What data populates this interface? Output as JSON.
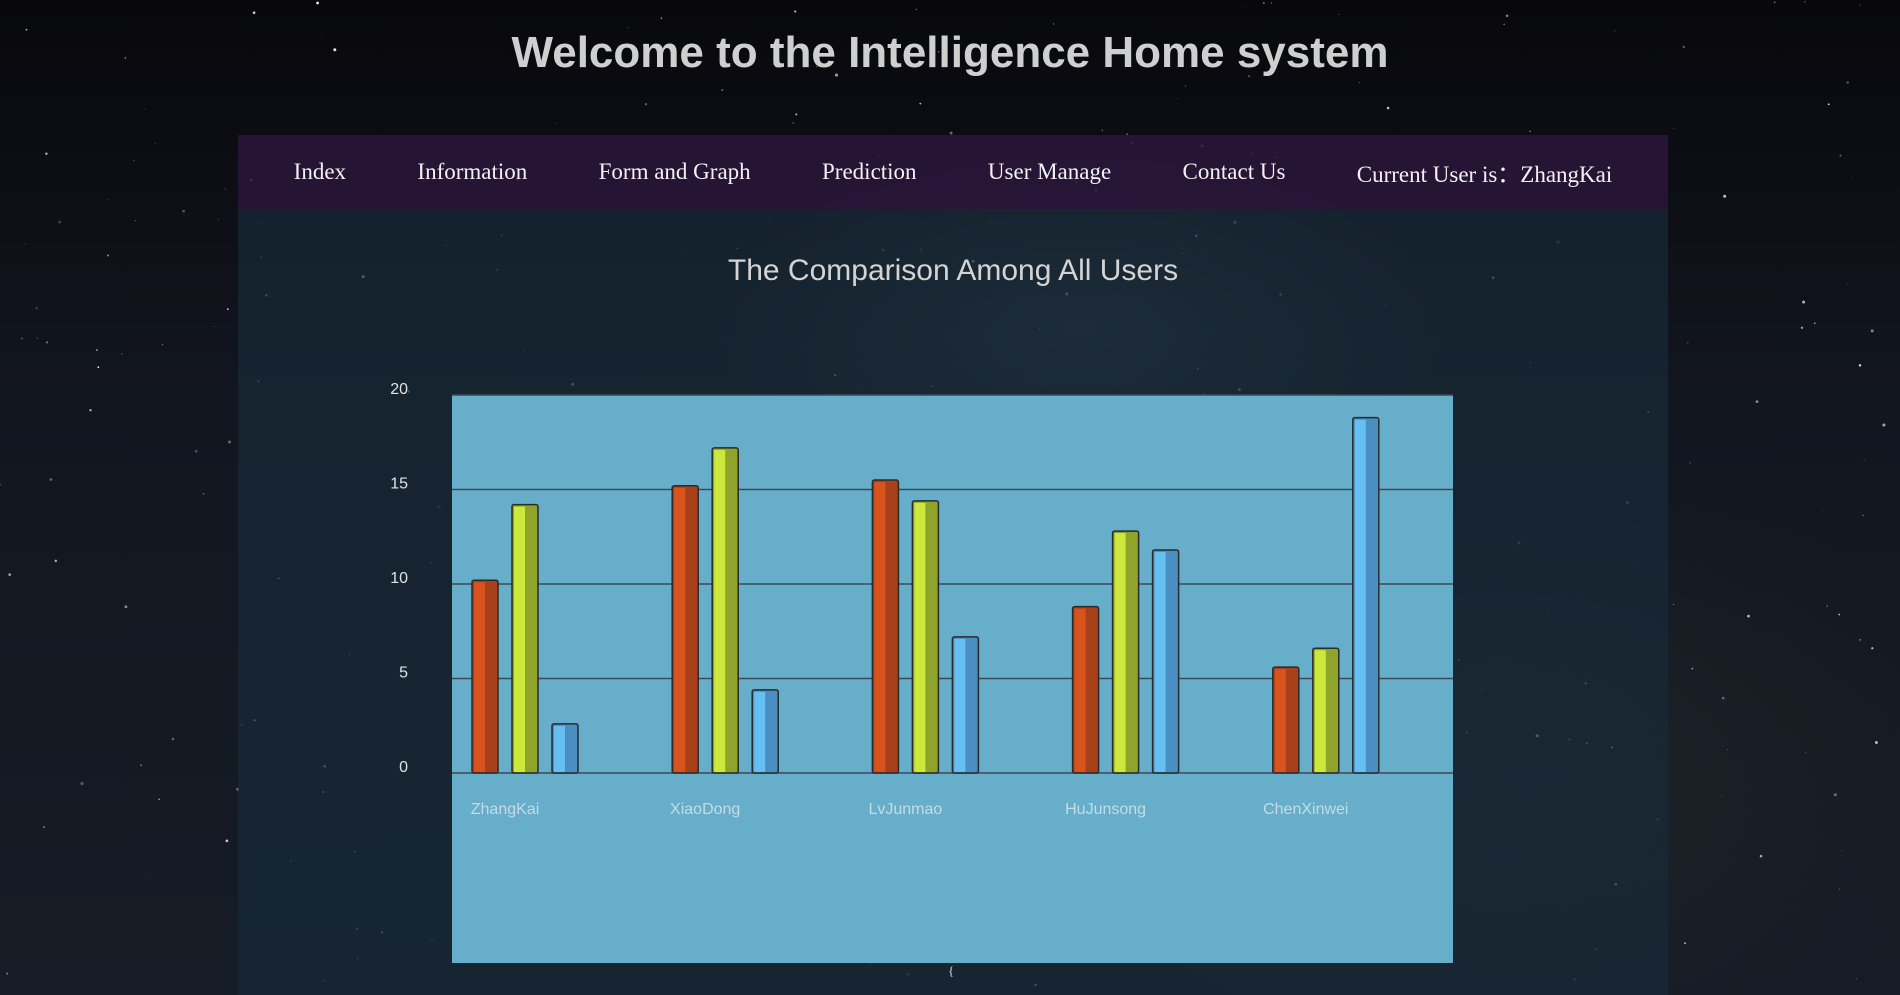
{
  "header": {
    "title": "Welcome to the Intelligence Home system"
  },
  "nav": {
    "items": [
      {
        "label": "Index"
      },
      {
        "label": "Information"
      },
      {
        "label": "Form and Graph"
      },
      {
        "label": "Prediction"
      },
      {
        "label": "User Manage"
      },
      {
        "label": "Contact Us"
      },
      {
        "label": "Current User is：ZhangKai"
      }
    ]
  },
  "footer": {
    "mark": "{"
  },
  "colors": {
    "series": [
      "#d9531e",
      "#cce83a",
      "#66bff2"
    ],
    "series_shade": [
      "#a8401a",
      "#8fa42a",
      "#4a8fc2"
    ],
    "plot_background": "#66aec9",
    "gridline": "#3d4a55"
  },
  "chart_data": {
    "type": "bar",
    "title": "The Comparison Among All Users",
    "categories": [
      "ZhangKai",
      "XiaoDong",
      "LvJunmao",
      "HuJunsong",
      "ChenXinwei"
    ],
    "series": [
      {
        "values": [
          10.2,
          15.2,
          15.5,
          8.8,
          5.6
        ]
      },
      {
        "values": [
          14.2,
          17.2,
          14.4,
          12.8,
          6.6
        ]
      },
      {
        "values": [
          2.6,
          4.4,
          7.2,
          11.8,
          18.8
        ]
      }
    ],
    "ylim": [
      0,
      20
    ],
    "yticks": [
      0,
      5,
      10,
      15,
      20
    ],
    "grid": true
  }
}
